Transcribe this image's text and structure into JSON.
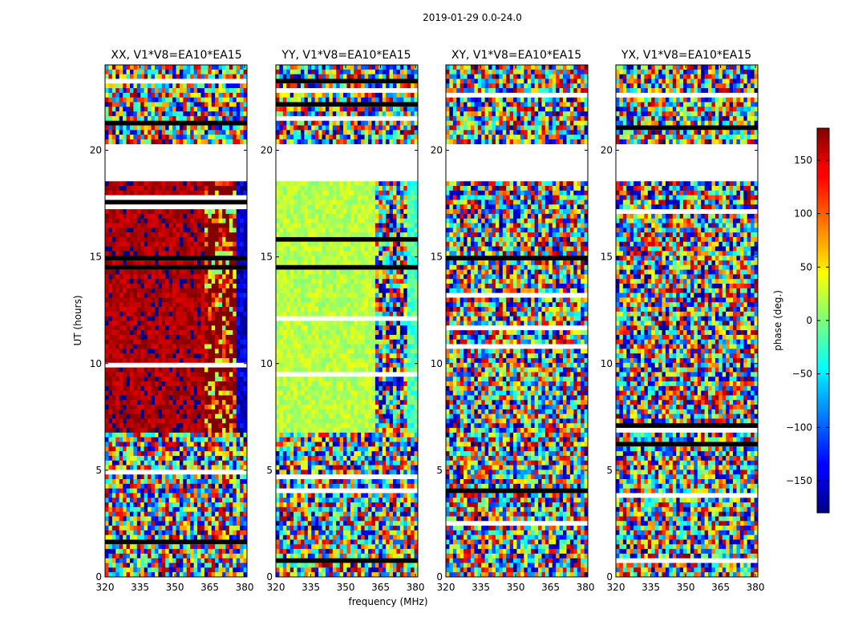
{
  "figure": {
    "suptitle": "2019-01-29 0.0-24.0"
  },
  "chart_data": {
    "type": "heatmap",
    "title": "2019-01-29 0.0-24.0",
    "xlabel": "frequency (MHz)",
    "ylabel": "UT (hours)",
    "xlim": [
      320,
      381
    ],
    "ylim": [
      0,
      24
    ],
    "x_ticks": [
      320,
      335,
      350,
      365,
      380
    ],
    "y_ticks": [
      0,
      5,
      10,
      15,
      20
    ],
    "panels": [
      {
        "title": "XX, V1*V8=EA10*EA15",
        "coherent_phase_deg": 165,
        "coherent_until_mhz": 363,
        "band_phase_deg": [
          165,
          -150
        ]
      },
      {
        "title": "YY, V1*V8=EA10*EA15",
        "coherent_phase_deg": 20,
        "coherent_until_mhz": 363,
        "band_phase_deg": [
          -20,
          -20
        ]
      },
      {
        "title": "XY, V1*V8=EA10*EA15",
        "coherent_phase_deg": null
      },
      {
        "title": "YX, V1*V8=EA10*EA15",
        "coherent_phase_deg": null
      }
    ],
    "gap_ut": [
      18.6,
      20.3
    ],
    "colorbar": {
      "label": "phase (deg.)",
      "range": [
        -180,
        180
      ],
      "ticks": [
        150,
        100,
        50,
        0,
        -50,
        -100,
        -150
      ],
      "tick_labels": [
        "150",
        "100",
        "50",
        "0",
        "−50",
        "−100",
        "−150"
      ]
    }
  }
}
